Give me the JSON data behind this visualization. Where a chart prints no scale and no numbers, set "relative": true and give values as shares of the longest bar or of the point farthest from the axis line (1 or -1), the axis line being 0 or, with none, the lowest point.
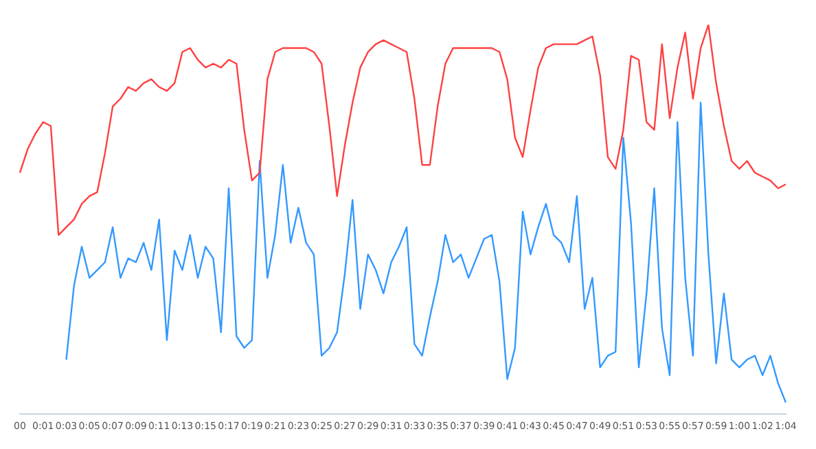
{
  "chart_data": {
    "type": "line",
    "relative": true,
    "legend": false,
    "grid": false,
    "marker": "none",
    "line_style": "solid",
    "tick_labels": "x",
    "categories": [
      "00",
      null,
      null,
      "0:01",
      null,
      null,
      "0:03",
      null,
      null,
      "0:05",
      null,
      null,
      "0:07",
      null,
      null,
      "0:09",
      null,
      null,
      "0:11",
      null,
      null,
      "0:13",
      null,
      null,
      "0:15",
      null,
      null,
      "0:17",
      null,
      null,
      "0:19",
      null,
      null,
      "0:21",
      null,
      null,
      "0:23",
      null,
      null,
      "0:25",
      null,
      null,
      "0:27",
      null,
      null,
      "0:29",
      null,
      null,
      "0:31",
      null,
      null,
      "0:33",
      null,
      null,
      "0:35",
      null,
      null,
      "0:37",
      null,
      null,
      "0:39",
      null,
      null,
      "0:41",
      null,
      null,
      "0:43",
      null,
      null,
      "0:45",
      null,
      null,
      "0:47",
      null,
      null,
      "0:49",
      null,
      null,
      "0:51",
      null,
      null,
      "0:53",
      null,
      null,
      "0:55",
      null,
      null,
      "0:57",
      null,
      null,
      "0:59",
      null,
      null,
      "1:00",
      null,
      null,
      "1:02",
      null,
      null,
      "1:04"
    ],
    "series": [
      {
        "color": "#ff4040",
        "values": [
          0.62,
          0.68,
          0.72,
          0.75,
          0.74,
          0.46,
          0.48,
          0.5,
          0.54,
          0.56,
          0.57,
          0.67,
          0.79,
          0.81,
          0.84,
          0.83,
          0.85,
          0.86,
          0.84,
          0.83,
          0.85,
          0.93,
          0.94,
          0.91,
          0.89,
          0.9,
          0.89,
          0.91,
          0.9,
          0.73,
          0.6,
          0.62,
          0.86,
          0.93,
          0.94,
          0.94,
          0.94,
          0.94,
          0.93,
          0.9,
          0.74,
          0.56,
          0.69,
          0.8,
          0.89,
          0.93,
          0.95,
          0.96,
          0.95,
          0.94,
          0.93,
          0.81,
          0.64,
          0.64,
          0.79,
          0.9,
          0.94,
          0.94,
          0.94,
          0.94,
          0.94,
          0.94,
          0.93,
          0.86,
          0.71,
          0.66,
          0.78,
          0.89,
          0.94,
          0.95,
          0.95,
          0.95,
          0.95,
          0.96,
          0.97,
          0.87,
          0.66,
          0.63,
          0.73,
          0.92,
          0.91,
          0.75,
          0.73,
          0.95,
          0.76,
          0.89,
          0.98,
          0.81,
          0.94,
          1,
          0.85,
          0.74,
          0.65,
          0.63,
          0.65,
          0.62,
          0.61,
          0.6,
          0.58,
          0.59
        ]
      },
      {
        "color": "#3399ff",
        "values": [
          null,
          null,
          null,
          null,
          null,
          null,
          0.14,
          0.33,
          0.43,
          0.35,
          0.37,
          0.39,
          0.48,
          0.35,
          0.4,
          0.39,
          0.44,
          0.37,
          0.5,
          0.19,
          0.42,
          0.37,
          0.46,
          0.35,
          0.43,
          0.4,
          0.21,
          0.58,
          0.2,
          0.17,
          0.19,
          0.65,
          0.35,
          0.46,
          0.64,
          0.44,
          0.53,
          0.44,
          0.41,
          0.15,
          0.17,
          0.21,
          0.36,
          0.55,
          0.27,
          0.41,
          0.37,
          0.31,
          0.39,
          0.43,
          0.48,
          0.18,
          0.15,
          0.25,
          0.34,
          0.46,
          0.39,
          0.41,
          0.35,
          0.4,
          0.45,
          0.46,
          0.34,
          0.09,
          0.17,
          0.52,
          0.41,
          0.48,
          0.54,
          0.46,
          0.44,
          0.39,
          0.56,
          0.27,
          0.35,
          0.12,
          0.15,
          0.16,
          0.71,
          0.49,
          0.12,
          0.31,
          0.58,
          0.22,
          0.1,
          0.75,
          0.35,
          0.15,
          0.8,
          0.41,
          0.13,
          0.31,
          0.14,
          0.12,
          0.14,
          0.15,
          0.1,
          0.15,
          0.08,
          0.03
        ]
      }
    ]
  }
}
